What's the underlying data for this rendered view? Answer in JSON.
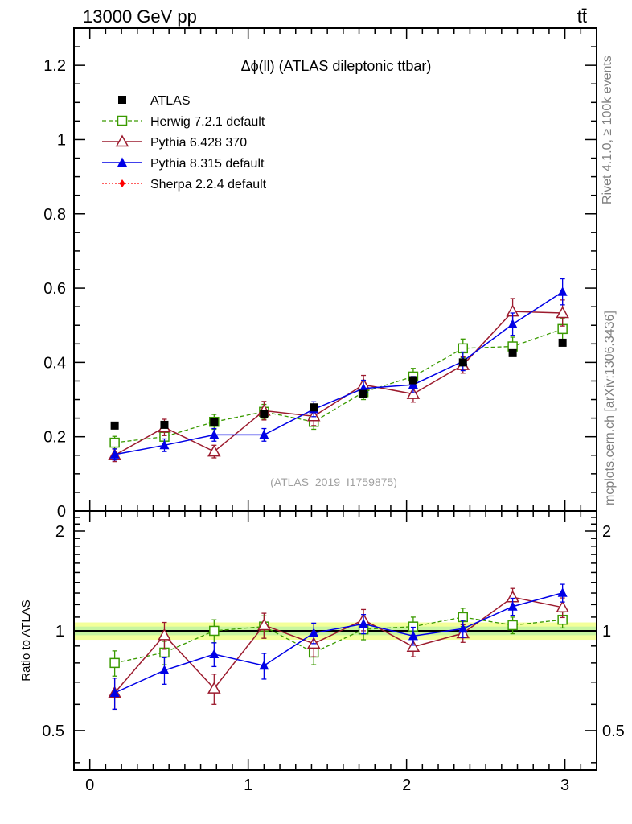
{
  "header": {
    "beam": "13000 GeV pp",
    "process": "tt̄",
    "rivet_label": "Rivet 4.1.0, ≥ 100k events",
    "site_label": "mcplots.cern.ch [arXiv:1306.3436]"
  },
  "chart_data": {
    "type": "scatter",
    "title": "Δϕ(ll) (ATLAS dileptonic ttbar)",
    "watermark": "(ATLAS_2019_I1759875)",
    "main": {
      "xlim": [
        -0.1,
        3.2
      ],
      "ylim": [
        0,
        1.3
      ],
      "yticks": [
        0,
        0.2,
        0.4,
        0.6,
        0.8,
        1,
        1.2
      ],
      "ytick_labels": [
        "0",
        "0.2",
        "0.4",
        "0.6",
        "0.8",
        "1",
        "1.2"
      ],
      "legend_position": "top-left"
    },
    "ratio": {
      "ylabel": "Ratio to ATLAS",
      "ylim_log": [
        0.38,
        2.3
      ],
      "yticks": [
        0.5,
        1,
        2
      ],
      "ytick_labels": [
        "0.5",
        "1",
        "2"
      ],
      "band": {
        "inner": 0.03,
        "outer": 0.06
      }
    },
    "xaxis": {
      "xticks": [
        0,
        1,
        2,
        3
      ],
      "xtick_labels": [
        "0",
        "1",
        "2",
        "3"
      ]
    },
    "x": [
      0.157,
      0.471,
      0.785,
      1.1,
      1.414,
      1.728,
      2.042,
      2.356,
      2.67,
      2.985
    ],
    "series": [
      {
        "name": "ATLAS",
        "style": "data",
        "color": "#000000",
        "values": [
          0.23,
          0.232,
          0.24,
          0.26,
          0.279,
          0.315,
          0.352,
          0.4,
          0.425,
          0.453
        ],
        "errors": [
          0,
          0,
          0,
          0,
          0,
          0,
          0,
          0,
          0,
          0
        ]
      },
      {
        "name": "Herwig 7.2.1 default",
        "style": "herwig",
        "color": "#3a9a00",
        "values": [
          0.184,
          0.2,
          0.24,
          0.267,
          0.24,
          0.32,
          0.362,
          0.438,
          0.443,
          0.49
        ],
        "errors": [
          0.017,
          0.017,
          0.02,
          0.02,
          0.02,
          0.02,
          0.022,
          0.025,
          0.025,
          0.028
        ],
        "ratio": [
          0.8,
          0.86,
          1.0,
          1.03,
          0.86,
          1.01,
          1.03,
          1.1,
          1.04,
          1.08
        ],
        "ratio_errors": [
          0.07,
          0.07,
          0.08,
          0.08,
          0.07,
          0.07,
          0.07,
          0.07,
          0.06,
          0.06
        ]
      },
      {
        "name": "Pythia 6.428 370",
        "style": "pythia6",
        "color": "#9c1b2e",
        "values": [
          0.15,
          0.225,
          0.16,
          0.27,
          0.255,
          0.34,
          0.315,
          0.393,
          0.537,
          0.533
        ],
        "errors": [
          0.017,
          0.022,
          0.017,
          0.025,
          0.025,
          0.025,
          0.022,
          0.022,
          0.035,
          0.035
        ],
        "ratio": [
          0.65,
          0.97,
          0.67,
          1.04,
          0.915,
          1.08,
          0.895,
          0.983,
          1.263,
          1.177
        ],
        "ratio_errors": [
          0.07,
          0.09,
          0.07,
          0.09,
          0.08,
          0.08,
          0.06,
          0.06,
          0.08,
          0.08
        ]
      },
      {
        "name": "Pythia 8.315 default",
        "style": "pythia8",
        "color": "#0000e6",
        "values": [
          0.152,
          0.177,
          0.205,
          0.205,
          0.274,
          0.33,
          0.34,
          0.403,
          0.503,
          0.59
        ],
        "errors": [
          0.015,
          0.017,
          0.017,
          0.017,
          0.02,
          0.022,
          0.022,
          0.025,
          0.03,
          0.035
        ],
        "ratio": [
          0.65,
          0.76,
          0.85,
          0.785,
          0.985,
          1.05,
          0.965,
          1.015,
          1.184,
          1.302
        ],
        "ratio_errors": [
          0.07,
          0.07,
          0.07,
          0.07,
          0.07,
          0.07,
          0.06,
          0.06,
          0.07,
          0.08
        ]
      },
      {
        "name": "Sherpa 2.2.4 default",
        "style": "sherpa",
        "color": "#ff0000",
        "values": [],
        "errors": []
      }
    ]
  }
}
